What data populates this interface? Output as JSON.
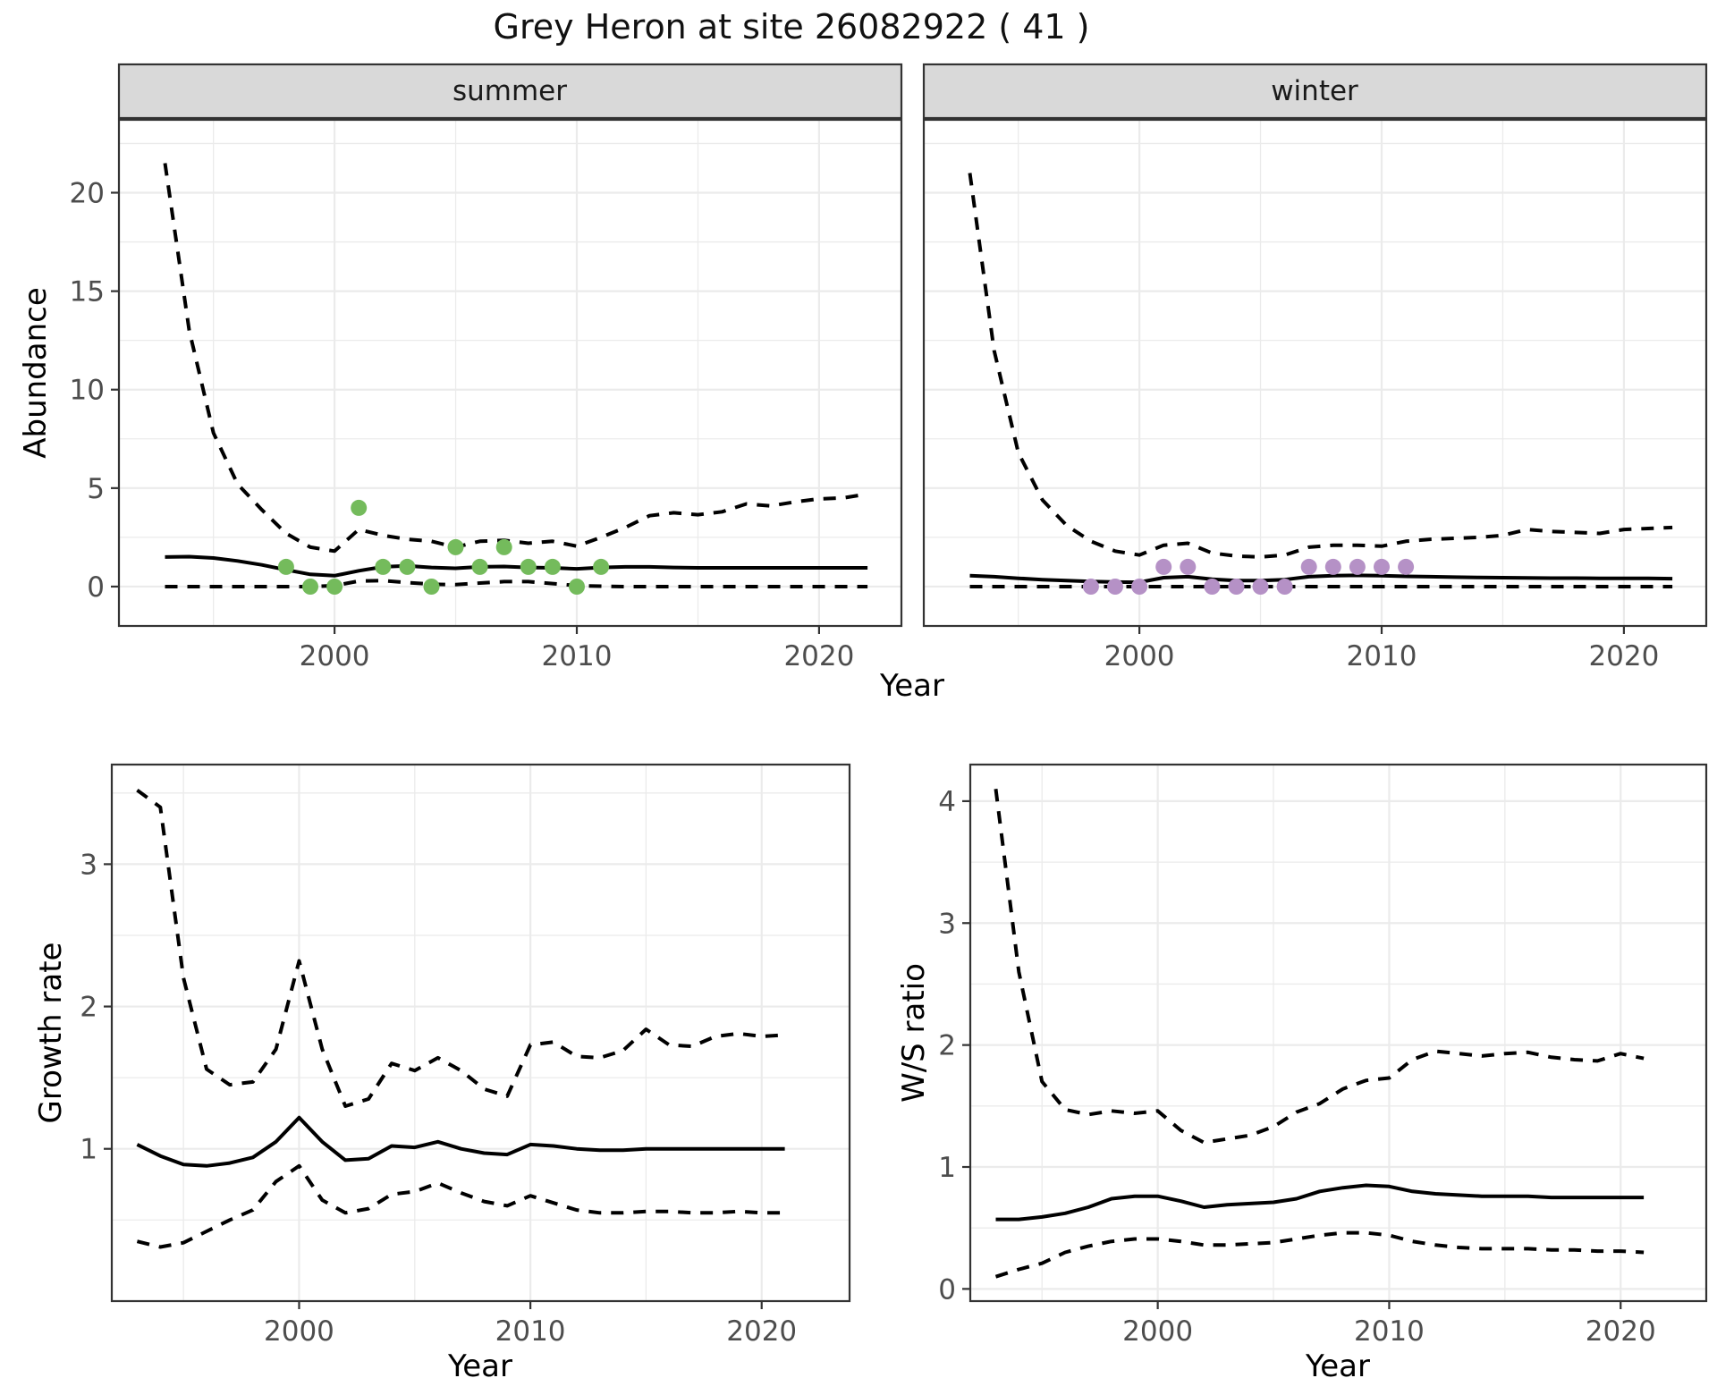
{
  "title": "Grey Heron at site 26082922 ( 41 )",
  "colors": {
    "summer_points": "#74BB5C",
    "winter_points": "#B591C6",
    "fit_line": "#000000",
    "ci_line": "#000000",
    "strip_bg": "#D9D9D9",
    "panel_border": "#333333",
    "grid": "#EBEBEB",
    "axis_text": "#4D4D4D",
    "tick_mark": "#333333"
  },
  "chart_data": [
    {
      "type": "line",
      "name": "abundance-by-season",
      "xlabel": "Year",
      "ylabel": "Abundance",
      "xticks": [
        2000,
        2010,
        2020
      ],
      "yticks": [
        0,
        5,
        10,
        15,
        20
      ],
      "xlim": [
        1991.1,
        2023.4
      ],
      "ylim": [
        -2.0,
        23.7
      ],
      "grid": true,
      "years": [
        1993,
        1994,
        1995,
        1996,
        1997,
        1998,
        1999,
        2000,
        2001,
        2002,
        2003,
        2004,
        2005,
        2006,
        2007,
        2008,
        2009,
        2010,
        2011,
        2012,
        2013,
        2014,
        2015,
        2016,
        2017,
        2018,
        2019,
        2020,
        2021,
        2022
      ],
      "obs_years": [
        1998,
        1999,
        2000,
        2001,
        2002,
        2003,
        2004,
        2005,
        2006,
        2007,
        2008,
        2009,
        2010,
        2011
      ],
      "facets": [
        {
          "label": "summer",
          "obs_values": [
            1,
            0,
            0,
            4,
            1,
            1,
            0,
            2,
            1,
            2,
            1,
            1,
            0,
            1
          ],
          "series": [
            {
              "name": "fit",
              "style": "solid",
              "values": [
                1.5,
                1.52,
                1.45,
                1.3,
                1.1,
                0.85,
                0.62,
                0.55,
                0.8,
                1.0,
                1.05,
                0.97,
                0.93,
                1.0,
                1.02,
                0.97,
                0.95,
                0.9,
                0.97,
                1.0,
                1.0,
                0.97,
                0.95,
                0.95,
                0.95,
                0.95,
                0.95,
                0.95,
                0.95,
                0.95
              ]
            },
            {
              "name": "upper_ci",
              "style": "dashed",
              "values": [
                21.5,
                13.0,
                7.8,
                5.2,
                3.9,
                2.7,
                2.0,
                1.8,
                2.9,
                2.6,
                2.4,
                2.3,
                2.0,
                2.3,
                2.35,
                2.2,
                2.3,
                2.05,
                2.5,
                3.0,
                3.6,
                3.75,
                3.65,
                3.8,
                4.2,
                4.1,
                4.3,
                4.45,
                4.5,
                4.7
              ]
            },
            {
              "name": "lower_ci",
              "style": "dashed",
              "values": [
                0,
                0,
                0,
                0,
                0,
                0,
                0,
                0.05,
                0.28,
                0.3,
                0.2,
                0.12,
                0.1,
                0.18,
                0.25,
                0.25,
                0.15,
                0.05,
                0.02,
                0,
                0,
                0,
                0,
                0,
                0,
                0,
                0,
                0,
                0,
                0
              ]
            }
          ]
        },
        {
          "label": "winter",
          "obs_values": [
            0,
            0,
            0,
            1,
            1,
            0,
            0,
            0,
            0,
            1,
            1,
            1,
            1,
            1
          ],
          "series": [
            {
              "name": "fit",
              "style": "solid",
              "values": [
                0.55,
                0.5,
                0.42,
                0.35,
                0.3,
                0.26,
                0.23,
                0.22,
                0.45,
                0.5,
                0.37,
                0.3,
                0.3,
                0.35,
                0.5,
                0.55,
                0.57,
                0.55,
                0.52,
                0.5,
                0.48,
                0.46,
                0.45,
                0.44,
                0.43,
                0.43,
                0.42,
                0.42,
                0.42,
                0.4
              ]
            },
            {
              "name": "upper_ci",
              "style": "dashed",
              "values": [
                21.0,
                12.0,
                6.8,
                4.4,
                3.1,
                2.3,
                1.8,
                1.6,
                2.1,
                2.2,
                1.7,
                1.55,
                1.5,
                1.6,
                2.0,
                2.1,
                2.1,
                2.05,
                2.3,
                2.4,
                2.45,
                2.5,
                2.6,
                2.9,
                2.8,
                2.75,
                2.7,
                2.9,
                2.95,
                3.0
              ]
            },
            {
              "name": "lower_ci",
              "style": "dashed",
              "values": [
                0,
                0,
                0,
                0,
                0,
                0,
                0,
                0,
                0,
                0,
                0,
                0,
                0,
                0,
                0,
                0,
                0,
                0,
                0,
                0,
                0,
                0,
                0,
                0,
                0,
                0,
                0,
                0,
                0,
                0
              ]
            }
          ]
        }
      ]
    },
    {
      "type": "line",
      "name": "growth-rate",
      "xlabel": "Year",
      "ylabel": "Growth rate",
      "xticks": [
        2000,
        2010,
        2020
      ],
      "yticks": [
        1,
        2,
        3
      ],
      "xlim": [
        1991.9,
        2023.8
      ],
      "ylim": [
        -0.07,
        3.7
      ],
      "grid": true,
      "years": [
        1993,
        1994,
        1995,
        1996,
        1997,
        1998,
        1999,
        2000,
        2001,
        2002,
        2003,
        2004,
        2005,
        2006,
        2007,
        2008,
        2009,
        2010,
        2011,
        2012,
        2013,
        2014,
        2015,
        2016,
        2017,
        2018,
        2019,
        2020,
        2021
      ],
      "series": [
        {
          "name": "fit",
          "style": "solid",
          "values": [
            1.03,
            0.95,
            0.89,
            0.88,
            0.9,
            0.94,
            1.05,
            1.22,
            1.05,
            0.92,
            0.93,
            1.02,
            1.01,
            1.05,
            1.0,
            0.97,
            0.96,
            1.03,
            1.02,
            1.0,
            0.99,
            0.99,
            1.0,
            1.0,
            1.0,
            1.0,
            1.0,
            1.0,
            1.0
          ]
        },
        {
          "name": "upper_ci",
          "style": "dashed",
          "values": [
            3.52,
            3.4,
            2.2,
            1.56,
            1.45,
            1.47,
            1.7,
            2.32,
            1.7,
            1.3,
            1.35,
            1.6,
            1.55,
            1.64,
            1.55,
            1.42,
            1.37,
            1.73,
            1.75,
            1.65,
            1.64,
            1.69,
            1.84,
            1.73,
            1.72,
            1.79,
            1.81,
            1.79,
            1.8
          ]
        },
        {
          "name": "lower_ci",
          "style": "dashed",
          "values": [
            0.35,
            0.31,
            0.34,
            0.42,
            0.5,
            0.57,
            0.77,
            0.88,
            0.64,
            0.55,
            0.58,
            0.68,
            0.7,
            0.76,
            0.69,
            0.63,
            0.6,
            0.67,
            0.62,
            0.57,
            0.55,
            0.55,
            0.56,
            0.56,
            0.55,
            0.55,
            0.56,
            0.55,
            0.55
          ]
        }
      ]
    },
    {
      "type": "line",
      "name": "ws-ratio",
      "xlabel": "Year",
      "ylabel": "W/S ratio",
      "xticks": [
        2000,
        2010,
        2020
      ],
      "yticks": [
        0,
        1,
        2,
        3,
        4
      ],
      "xlim": [
        1991.9,
        2023.7
      ],
      "ylim": [
        -0.1,
        4.3
      ],
      "grid": true,
      "years": [
        1993,
        1994,
        1995,
        1996,
        1997,
        1998,
        1999,
        2000,
        2001,
        2002,
        2003,
        2004,
        2005,
        2006,
        2007,
        2008,
        2009,
        2010,
        2011,
        2012,
        2013,
        2014,
        2015,
        2016,
        2017,
        2018,
        2019,
        2020,
        2021
      ],
      "series": [
        {
          "name": "fit",
          "style": "solid",
          "values": [
            0.57,
            0.57,
            0.59,
            0.62,
            0.67,
            0.74,
            0.76,
            0.76,
            0.72,
            0.67,
            0.69,
            0.7,
            0.71,
            0.74,
            0.8,
            0.83,
            0.85,
            0.84,
            0.8,
            0.78,
            0.77,
            0.76,
            0.76,
            0.76,
            0.75,
            0.75,
            0.75,
            0.75,
            0.75
          ]
        },
        {
          "name": "upper_ci",
          "style": "dashed",
          "values": [
            4.1,
            2.6,
            1.7,
            1.47,
            1.43,
            1.46,
            1.44,
            1.46,
            1.3,
            1.2,
            1.23,
            1.26,
            1.33,
            1.45,
            1.52,
            1.64,
            1.71,
            1.73,
            1.88,
            1.95,
            1.93,
            1.91,
            1.93,
            1.94,
            1.9,
            1.88,
            1.87,
            1.93,
            1.89
          ]
        },
        {
          "name": "lower_ci",
          "style": "dashed",
          "values": [
            0.1,
            0.16,
            0.21,
            0.3,
            0.35,
            0.39,
            0.41,
            0.41,
            0.39,
            0.36,
            0.36,
            0.37,
            0.38,
            0.41,
            0.44,
            0.46,
            0.46,
            0.44,
            0.39,
            0.36,
            0.34,
            0.33,
            0.33,
            0.33,
            0.32,
            0.32,
            0.31,
            0.31,
            0.3
          ]
        }
      ]
    }
  ]
}
